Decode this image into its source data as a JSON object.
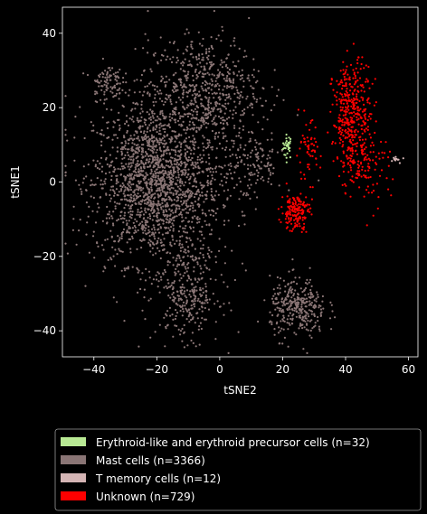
{
  "chart_data": {
    "type": "scatter",
    "title": "",
    "xlabel": "tSNE2",
    "ylabel": "tSNE1",
    "xlim": [
      -50,
      63
    ],
    "ylim": [
      -47,
      47
    ],
    "xticks": [
      -40,
      -20,
      0,
      20,
      40,
      60
    ],
    "yticks": [
      -40,
      -20,
      0,
      20,
      40
    ],
    "xtick_labels": [
      "−40",
      "−20",
      "0",
      "20",
      "40",
      "60"
    ],
    "ytick_labels": [
      "−40",
      "−20",
      "0",
      "20",
      "40"
    ],
    "background": "#000000",
    "grid": false,
    "legend_position": "below",
    "series": [
      {
        "name": "Erythroid-like and erythroid precursor cells (n=32)",
        "color": "#b8e994",
        "n": 32,
        "clusters": [
          {
            "cx": 21.5,
            "cy": 9.5,
            "sx": 0.8,
            "sy": 1.6,
            "n": 32
          }
        ]
      },
      {
        "name": "Mast cells (n=3366)",
        "color": "#8a7575",
        "n": 3366,
        "clusters": [
          {
            "cx": -20,
            "cy": 0,
            "sx": 10,
            "sy": 11,
            "n": 1900
          },
          {
            "cx": -5,
            "cy": 25,
            "sx": 9,
            "sy": 7,
            "n": 600
          },
          {
            "cx": -36,
            "cy": 27,
            "sx": 2.5,
            "sy": 2.5,
            "n": 90
          },
          {
            "cx": 25,
            "cy": -34,
            "sx": 4.5,
            "sy": 4,
            "n": 320
          },
          {
            "cx": -10,
            "cy": -30,
            "sx": 5,
            "sy": 6,
            "n": 300
          },
          {
            "cx": 10,
            "cy": 5,
            "sx": 5,
            "sy": 5,
            "n": 156
          }
        ]
      },
      {
        "name": "T memory cells (n=12)",
        "color": "#d4b4b4",
        "n": 12,
        "clusters": [
          {
            "cx": 56,
            "cy": 6,
            "sx": 1.2,
            "sy": 0.5,
            "n": 12
          }
        ]
      },
      {
        "name": "Unknown (n=729)",
        "color": "#ff0000",
        "n": 729,
        "clusters": [
          {
            "cx": 42,
            "cy": 18,
            "sx": 3,
            "sy": 7,
            "n": 380
          },
          {
            "cx": 46,
            "cy": 6,
            "sx": 4,
            "sy": 6,
            "n": 120
          },
          {
            "cx": 24,
            "cy": -8,
            "sx": 2.2,
            "sy": 2.5,
            "n": 170
          },
          {
            "cx": 28,
            "cy": 8,
            "sx": 2,
            "sy": 4,
            "n": 59
          }
        ]
      }
    ]
  }
}
